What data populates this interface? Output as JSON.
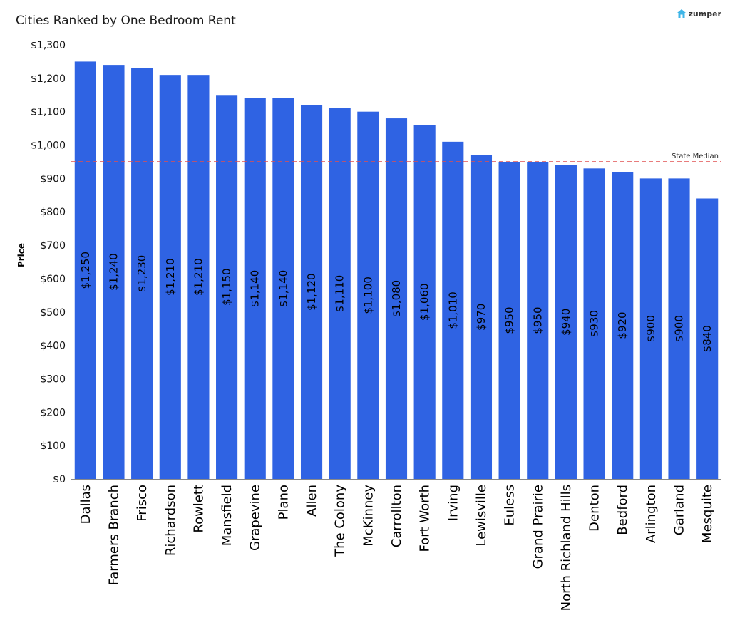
{
  "header": {
    "title": "Cities Ranked by One Bedroom Rent",
    "brand": "zumper",
    "brand_icon": "house-icon"
  },
  "colors": {
    "bar": "#2f63e3",
    "median_line": "#e05050",
    "axis": "#888888"
  },
  "chart_data": {
    "type": "bar",
    "title": "Cities Ranked by One Bedroom Rent",
    "xlabel": "",
    "ylabel": "Price",
    "ylim": [
      0,
      1300
    ],
    "yticks": [
      0,
      100,
      200,
      300,
      400,
      500,
      600,
      700,
      800,
      900,
      1000,
      1100,
      1200,
      1300
    ],
    "ytick_labels": [
      "$0",
      "$100",
      "$200",
      "$300",
      "$400",
      "$500",
      "$600",
      "$700",
      "$800",
      "$900",
      "$1,000",
      "$1,100",
      "$1,200",
      "$1,300"
    ],
    "grid": false,
    "categories": [
      "Dallas",
      "Farmers Branch",
      "Frisco",
      "Richardson",
      "Rowlett",
      "Mansfield",
      "Grapevine",
      "Plano",
      "Allen",
      "The Colony",
      "McKinney",
      "Carrollton",
      "Fort Worth",
      "Irving",
      "Lewisville",
      "Euless",
      "Grand Prairie",
      "North Richland Hills",
      "Denton",
      "Bedford",
      "Arlington",
      "Garland",
      "Mesquite"
    ],
    "values": [
      1250,
      1240,
      1230,
      1210,
      1210,
      1150,
      1140,
      1140,
      1120,
      1110,
      1100,
      1080,
      1060,
      1010,
      970,
      950,
      950,
      940,
      930,
      920,
      900,
      900,
      840
    ],
    "data_labels": [
      "$1,250",
      "$1,240",
      "$1,230",
      "$1,210",
      "$1,210",
      "$1,150",
      "$1,140",
      "$1,140",
      "$1,120",
      "$1,110",
      "$1,100",
      "$1,080",
      "$1,060",
      "$1,010",
      "$970",
      "$950",
      "$950",
      "$940",
      "$930",
      "$920",
      "$900",
      "$900",
      "$840"
    ],
    "reference_line": {
      "label": "State Median",
      "value": 950
    }
  }
}
